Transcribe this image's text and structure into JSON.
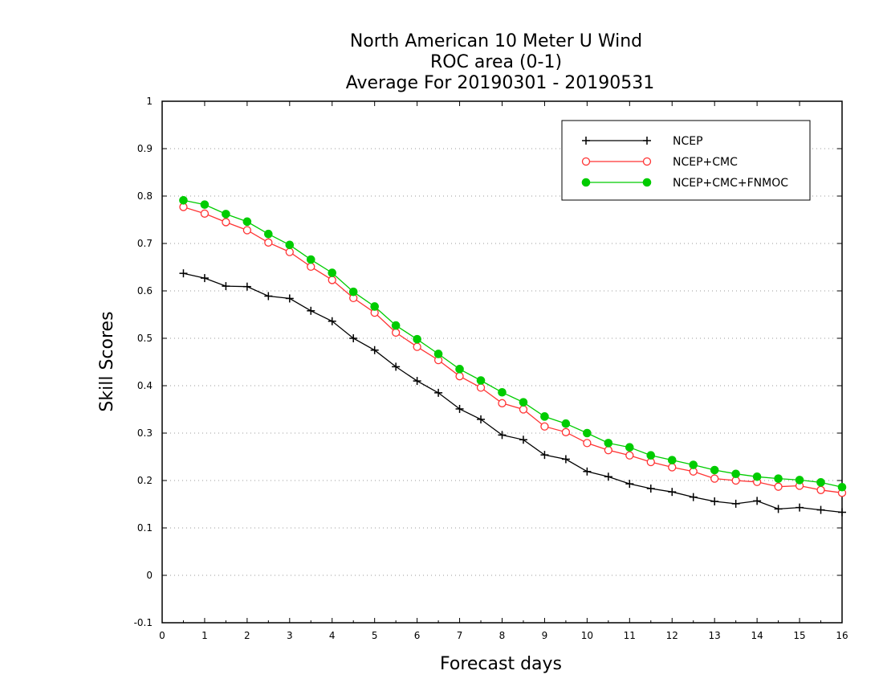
{
  "chart_data": {
    "type": "line",
    "title": [
      "North American 10 Meter U Wind",
      "ROC area (0-1)",
      "Average For 20190301 - 20190531"
    ],
    "xlabel": "Forecast days",
    "ylabel": "Skill Scores",
    "xlim": [
      0,
      16
    ],
    "ylim": [
      -0.1,
      1
    ],
    "xticks": [
      "0",
      "1",
      "2",
      "3",
      "4",
      "5",
      "6",
      "7",
      "8",
      "9",
      "10",
      "11",
      "12",
      "13",
      "14",
      "15",
      "16"
    ],
    "yticks": [
      "-0.1",
      "0",
      "0.1",
      "0.2",
      "0.3",
      "0.4",
      "0.5",
      "0.6",
      "0.7",
      "0.8",
      "0.9",
      "1"
    ],
    "grid": true,
    "legend_position": "top-right",
    "x": [
      0.5,
      1,
      1.5,
      2,
      2.5,
      3,
      3.5,
      4,
      4.5,
      5,
      5.5,
      6,
      6.5,
      7,
      7.5,
      8,
      8.5,
      9,
      9.5,
      10,
      10.5,
      11,
      11.5,
      12,
      12.5,
      13,
      13.5,
      14,
      14.5,
      15,
      15.5,
      16
    ],
    "series": [
      {
        "name": "NCEP",
        "color": "#000000",
        "marker": "plus",
        "values": [
          0.637,
          0.627,
          0.61,
          0.609,
          0.589,
          0.584,
          0.558,
          0.536,
          0.5,
          0.475,
          0.44,
          0.41,
          0.385,
          0.351,
          0.329,
          0.296,
          0.286,
          0.254,
          0.245,
          0.219,
          0.208,
          0.193,
          0.183,
          0.176,
          0.165,
          0.156,
          0.151,
          0.157,
          0.14,
          0.143,
          0.138,
          0.133
        ]
      },
      {
        "name": "NCEP+CMC",
        "color": "#ff3333",
        "marker": "open-circle",
        "values": [
          0.777,
          0.763,
          0.745,
          0.728,
          0.702,
          0.682,
          0.651,
          0.623,
          0.585,
          0.554,
          0.512,
          0.482,
          0.454,
          0.42,
          0.396,
          0.363,
          0.35,
          0.314,
          0.302,
          0.279,
          0.264,
          0.253,
          0.239,
          0.228,
          0.219,
          0.204,
          0.2,
          0.197,
          0.187,
          0.189,
          0.18,
          0.174
        ]
      },
      {
        "name": "NCEP+CMC+FNMOC",
        "color": "#00cc00",
        "marker": "filled-circle",
        "values": [
          0.791,
          0.782,
          0.762,
          0.746,
          0.72,
          0.697,
          0.666,
          0.638,
          0.598,
          0.567,
          0.527,
          0.498,
          0.467,
          0.435,
          0.411,
          0.386,
          0.365,
          0.335,
          0.32,
          0.3,
          0.279,
          0.27,
          0.253,
          0.243,
          0.233,
          0.222,
          0.214,
          0.208,
          0.204,
          0.201,
          0.196,
          0.186
        ]
      }
    ]
  }
}
